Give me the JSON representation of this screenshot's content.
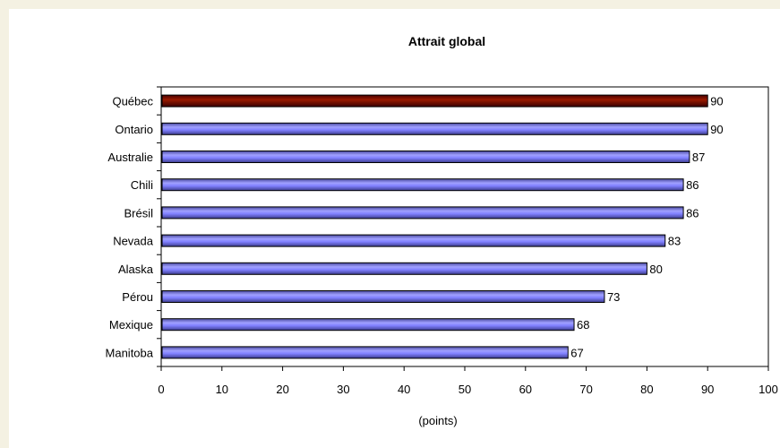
{
  "chart_data": {
    "type": "bar",
    "orientation": "horizontal",
    "title": "Attrait global",
    "xlabel": "(points)",
    "ylabel": "",
    "xlim": [
      0,
      100
    ],
    "x_ticks": [
      "0",
      "10",
      "20",
      "30",
      "40",
      "50",
      "60",
      "70",
      "80",
      "90",
      "100"
    ],
    "categories": [
      "Québec",
      "Ontario",
      "Australie",
      "Chili",
      "Brésil",
      "Nevada",
      "Alaska",
      "Pérou",
      "Mexique",
      "Manitoba"
    ],
    "values": [
      90,
      90,
      87,
      86,
      86,
      83,
      80,
      73,
      68,
      67
    ],
    "value_labels": [
      "90",
      "90",
      "87",
      "86",
      "86",
      "83",
      "80",
      "73",
      "68",
      "67"
    ],
    "grid": false,
    "legend": "none",
    "colors": {
      "highlight": "#800000",
      "bar": "#8080ff",
      "bar_dark": "#5a5ab0",
      "highlight_category": "Québec",
      "page_background": "#f4f1e2",
      "plot_background": "#ffffff"
    }
  }
}
